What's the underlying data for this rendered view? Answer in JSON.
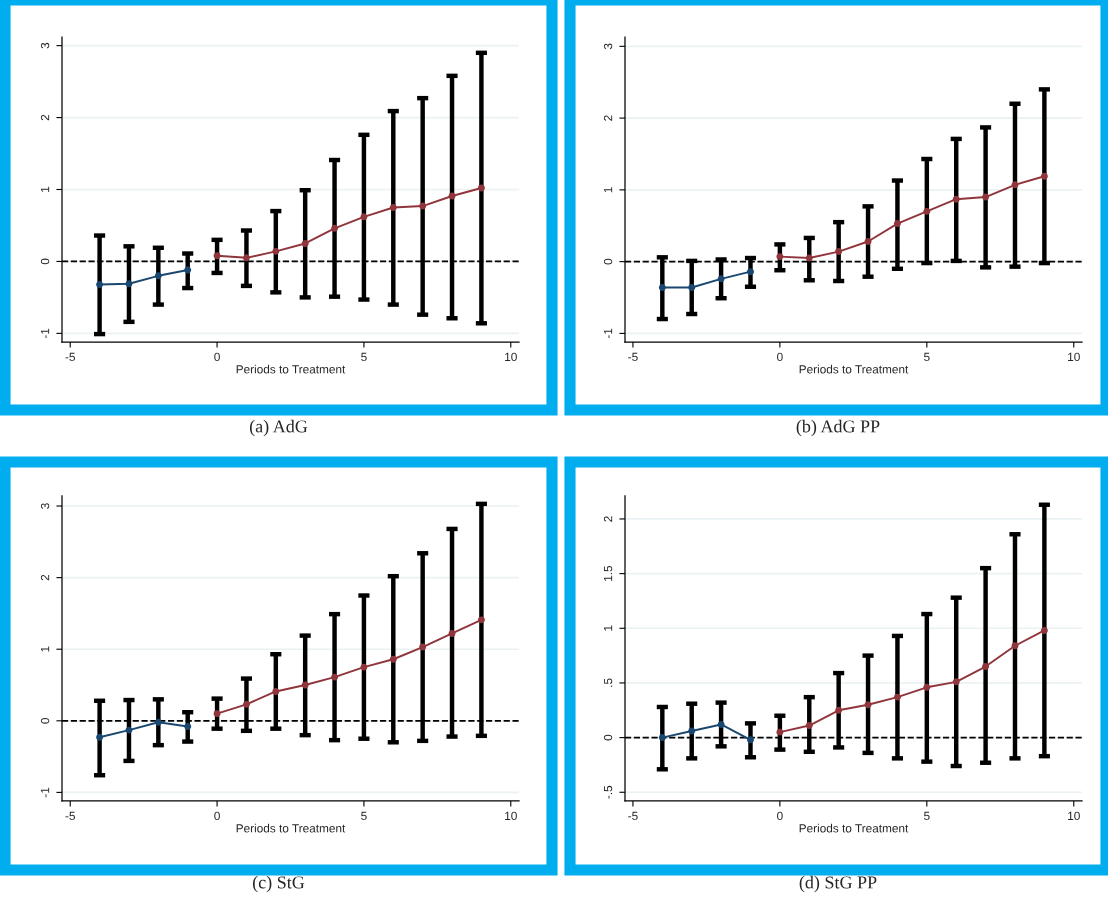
{
  "chart_data": [
    {
      "type": "line",
      "title": "(a) AdG",
      "xlabel": "Periods to Treatment",
      "xlim": [
        -5.28,
        10.28
      ],
      "xticks": [
        -5,
        0,
        5,
        10
      ],
      "ylim": [
        -1.12,
        3.12
      ],
      "yticks": [
        -1,
        0,
        1,
        2,
        3
      ],
      "grid": "y",
      "marker": "circle",
      "line_style": "solid",
      "legend": false,
      "ref_lines": [
        {
          "axis": "y",
          "value": 0,
          "color": "#000000",
          "line_style": "dashed"
        }
      ],
      "series": [
        {
          "color": "#1a476f",
          "x": [
            -4,
            -3,
            -2,
            -1
          ],
          "values": [
            -0.32,
            -0.31,
            -0.2,
            -0.12
          ],
          "errors": [
            [
              -1.01,
              0.36
            ],
            [
              -0.84,
              0.21
            ],
            [
              -0.6,
              0.19
            ],
            [
              -0.37,
              0.11
            ]
          ]
        },
        {
          "color": "#90353b",
          "x": [
            0,
            1,
            2,
            3,
            4,
            5,
            6,
            7,
            8,
            9
          ],
          "values": [
            0.08,
            0.05,
            0.14,
            0.25,
            0.46,
            0.62,
            0.75,
            0.77,
            0.91,
            1.02
          ],
          "errors": [
            [
              -0.16,
              0.3
            ],
            [
              -0.34,
              0.43
            ],
            [
              -0.43,
              0.7
            ],
            [
              -0.5,
              0.99
            ],
            [
              -0.49,
              1.41
            ],
            [
              -0.53,
              1.76
            ],
            [
              -0.6,
              2.09
            ],
            [
              -0.74,
              2.27
            ],
            [
              -0.79,
              2.58
            ],
            [
              -0.86,
              2.9
            ]
          ]
        }
      ]
    },
    {
      "type": "line",
      "title": "(b) AdG PP",
      "xlabel": "Periods to Treatment",
      "xlim": [
        -5.27,
        10.28
      ],
      "xticks": [
        -5,
        0,
        5,
        10
      ],
      "ylim": [
        -1.12,
        3.13
      ],
      "yticks": [
        -1,
        0,
        1,
        2,
        3
      ],
      "grid": "y",
      "marker": "circle",
      "line_style": "solid",
      "legend": false,
      "ref_lines": [
        {
          "axis": "y",
          "value": 0,
          "color": "#000000",
          "line_style": "dashed"
        }
      ],
      "series": [
        {
          "color": "#1a476f",
          "x": [
            -4,
            -3,
            -2,
            -1
          ],
          "values": [
            -0.36,
            -0.36,
            -0.24,
            -0.14
          ],
          "errors": [
            [
              -0.8,
              0.06
            ],
            [
              -0.73,
              0.01
            ],
            [
              -0.51,
              0.03
            ],
            [
              -0.35,
              0.05
            ]
          ]
        },
        {
          "color": "#90353b",
          "x": [
            0,
            1,
            2,
            3,
            4,
            5,
            6,
            7,
            8,
            9
          ],
          "values": [
            0.07,
            0.05,
            0.14,
            0.28,
            0.53,
            0.7,
            0.87,
            0.9,
            1.07,
            1.19
          ],
          "errors": [
            [
              -0.12,
              0.24
            ],
            [
              -0.26,
              0.33
            ],
            [
              -0.27,
              0.55
            ],
            [
              -0.21,
              0.77
            ],
            [
              -0.1,
              1.13
            ],
            [
              -0.02,
              1.43
            ],
            [
              0.01,
              1.71
            ],
            [
              -0.08,
              1.87
            ],
            [
              -0.07,
              2.2
            ],
            [
              -0.02,
              2.4
            ]
          ]
        }
      ]
    },
    {
      "type": "line",
      "title": "(c) StG",
      "xlabel": "Periods to Treatment",
      "xlim": [
        -5.28,
        10.28
      ],
      "xticks": [
        -5,
        0,
        5,
        10
      ],
      "ylim": [
        -1.12,
        3.14
      ],
      "yticks": [
        -1,
        0,
        1,
        2,
        3
      ],
      "grid": "y",
      "marker": "circle",
      "line_style": "solid",
      "legend": false,
      "ref_lines": [
        {
          "axis": "y",
          "value": 0,
          "color": "#000000",
          "line_style": "dashed"
        }
      ],
      "series": [
        {
          "color": "#1a476f",
          "x": [
            -4,
            -3,
            -2,
            -1
          ],
          "values": [
            -0.23,
            -0.13,
            -0.02,
            -0.08
          ],
          "errors": [
            [
              -0.76,
              0.28
            ],
            [
              -0.56,
              0.29
            ],
            [
              -0.34,
              0.3
            ],
            [
              -0.29,
              0.12
            ]
          ]
        },
        {
          "color": "#90353b",
          "x": [
            0,
            1,
            2,
            3,
            4,
            5,
            6,
            7,
            8,
            9
          ],
          "values": [
            0.1,
            0.23,
            0.41,
            0.5,
            0.61,
            0.75,
            0.86,
            1.03,
            1.22,
            1.41
          ],
          "errors": [
            [
              -0.11,
              0.31
            ],
            [
              -0.14,
              0.59
            ],
            [
              -0.11,
              0.93
            ],
            [
              -0.2,
              1.19
            ],
            [
              -0.27,
              1.49
            ],
            [
              -0.25,
              1.75
            ],
            [
              -0.3,
              2.02
            ],
            [
              -0.28,
              2.34
            ],
            [
              -0.22,
              2.68
            ],
            [
              -0.21,
              3.03
            ]
          ]
        }
      ]
    },
    {
      "type": "line",
      "title": "(d) StG PP",
      "xlabel": "Periods to Treatment",
      "xlim": [
        -5.27,
        10.28
      ],
      "xticks": [
        -5,
        0,
        5,
        10
      ],
      "ylim": [
        -0.58,
        2.21
      ],
      "yticks": [
        {
          "value": -0.5,
          "label": "-.5"
        },
        0,
        {
          "value": 0.5,
          "label": ".5"
        },
        1,
        {
          "value": 1.5,
          "label": "1.5"
        },
        2
      ],
      "grid": "y",
      "marker": "circle",
      "line_style": "solid",
      "legend": false,
      "ref_lines": [
        {
          "axis": "y",
          "value": 0,
          "color": "#000000",
          "line_style": "dashed"
        }
      ],
      "series": [
        {
          "color": "#1a476f",
          "x": [
            -4,
            -3,
            -2,
            -1
          ],
          "values": [
            0.0,
            0.06,
            0.12,
            -0.02
          ],
          "errors": [
            [
              -0.29,
              0.28
            ],
            [
              -0.19,
              0.31
            ],
            [
              -0.08,
              0.32
            ],
            [
              -0.18,
              0.13
            ]
          ]
        },
        {
          "color": "#90353b",
          "x": [
            0,
            1,
            2,
            3,
            4,
            5,
            6,
            7,
            8,
            9
          ],
          "values": [
            0.05,
            0.11,
            0.25,
            0.3,
            0.37,
            0.46,
            0.51,
            0.65,
            0.84,
            0.98
          ],
          "errors": [
            [
              -0.11,
              0.2
            ],
            [
              -0.13,
              0.37
            ],
            [
              -0.09,
              0.59
            ],
            [
              -0.14,
              0.75
            ],
            [
              -0.19,
              0.93
            ],
            [
              -0.22,
              1.13
            ],
            [
              -0.26,
              1.28
            ],
            [
              -0.23,
              1.55
            ],
            [
              -0.19,
              1.86
            ],
            [
              -0.17,
              2.13
            ]
          ]
        }
      ]
    }
  ]
}
